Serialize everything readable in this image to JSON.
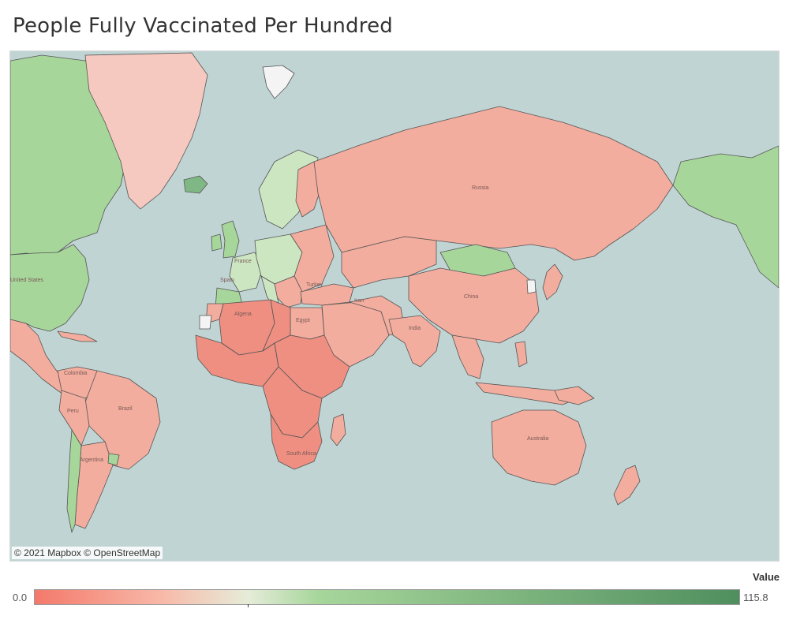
{
  "title": "People Fully Vaccinated Per Hundred",
  "attribution": "© 2021 Mapbox © OpenStreetMap",
  "legend": {
    "title": "Value",
    "min_label": "0.0",
    "max_label": "115.8",
    "min": 0.0,
    "max": 115.8,
    "midpoint": 35,
    "colors": {
      "low": "#f4796b",
      "mid_low": "#f8b9a8",
      "mid": "#e6ecd9",
      "mid_high": "#a7d69b",
      "high": "#4f8f5e"
    }
  },
  "map": {
    "ocean_color": "#c1d4d4",
    "border_color": "#555555",
    "country_labels": [
      {
        "name": "Russia"
      },
      {
        "name": "China"
      },
      {
        "name": "India"
      },
      {
        "name": "Iran"
      },
      {
        "name": "Egypt"
      },
      {
        "name": "Algeria"
      },
      {
        "name": "South Africa"
      },
      {
        "name": "Brazil"
      },
      {
        "name": "Argentina"
      },
      {
        "name": "Peru"
      },
      {
        "name": "Australia"
      },
      {
        "name": "France"
      },
      {
        "name": "Spain"
      },
      {
        "name": "Turkey"
      },
      {
        "name": "Colombia"
      },
      {
        "name": "United States"
      }
    ]
  }
}
